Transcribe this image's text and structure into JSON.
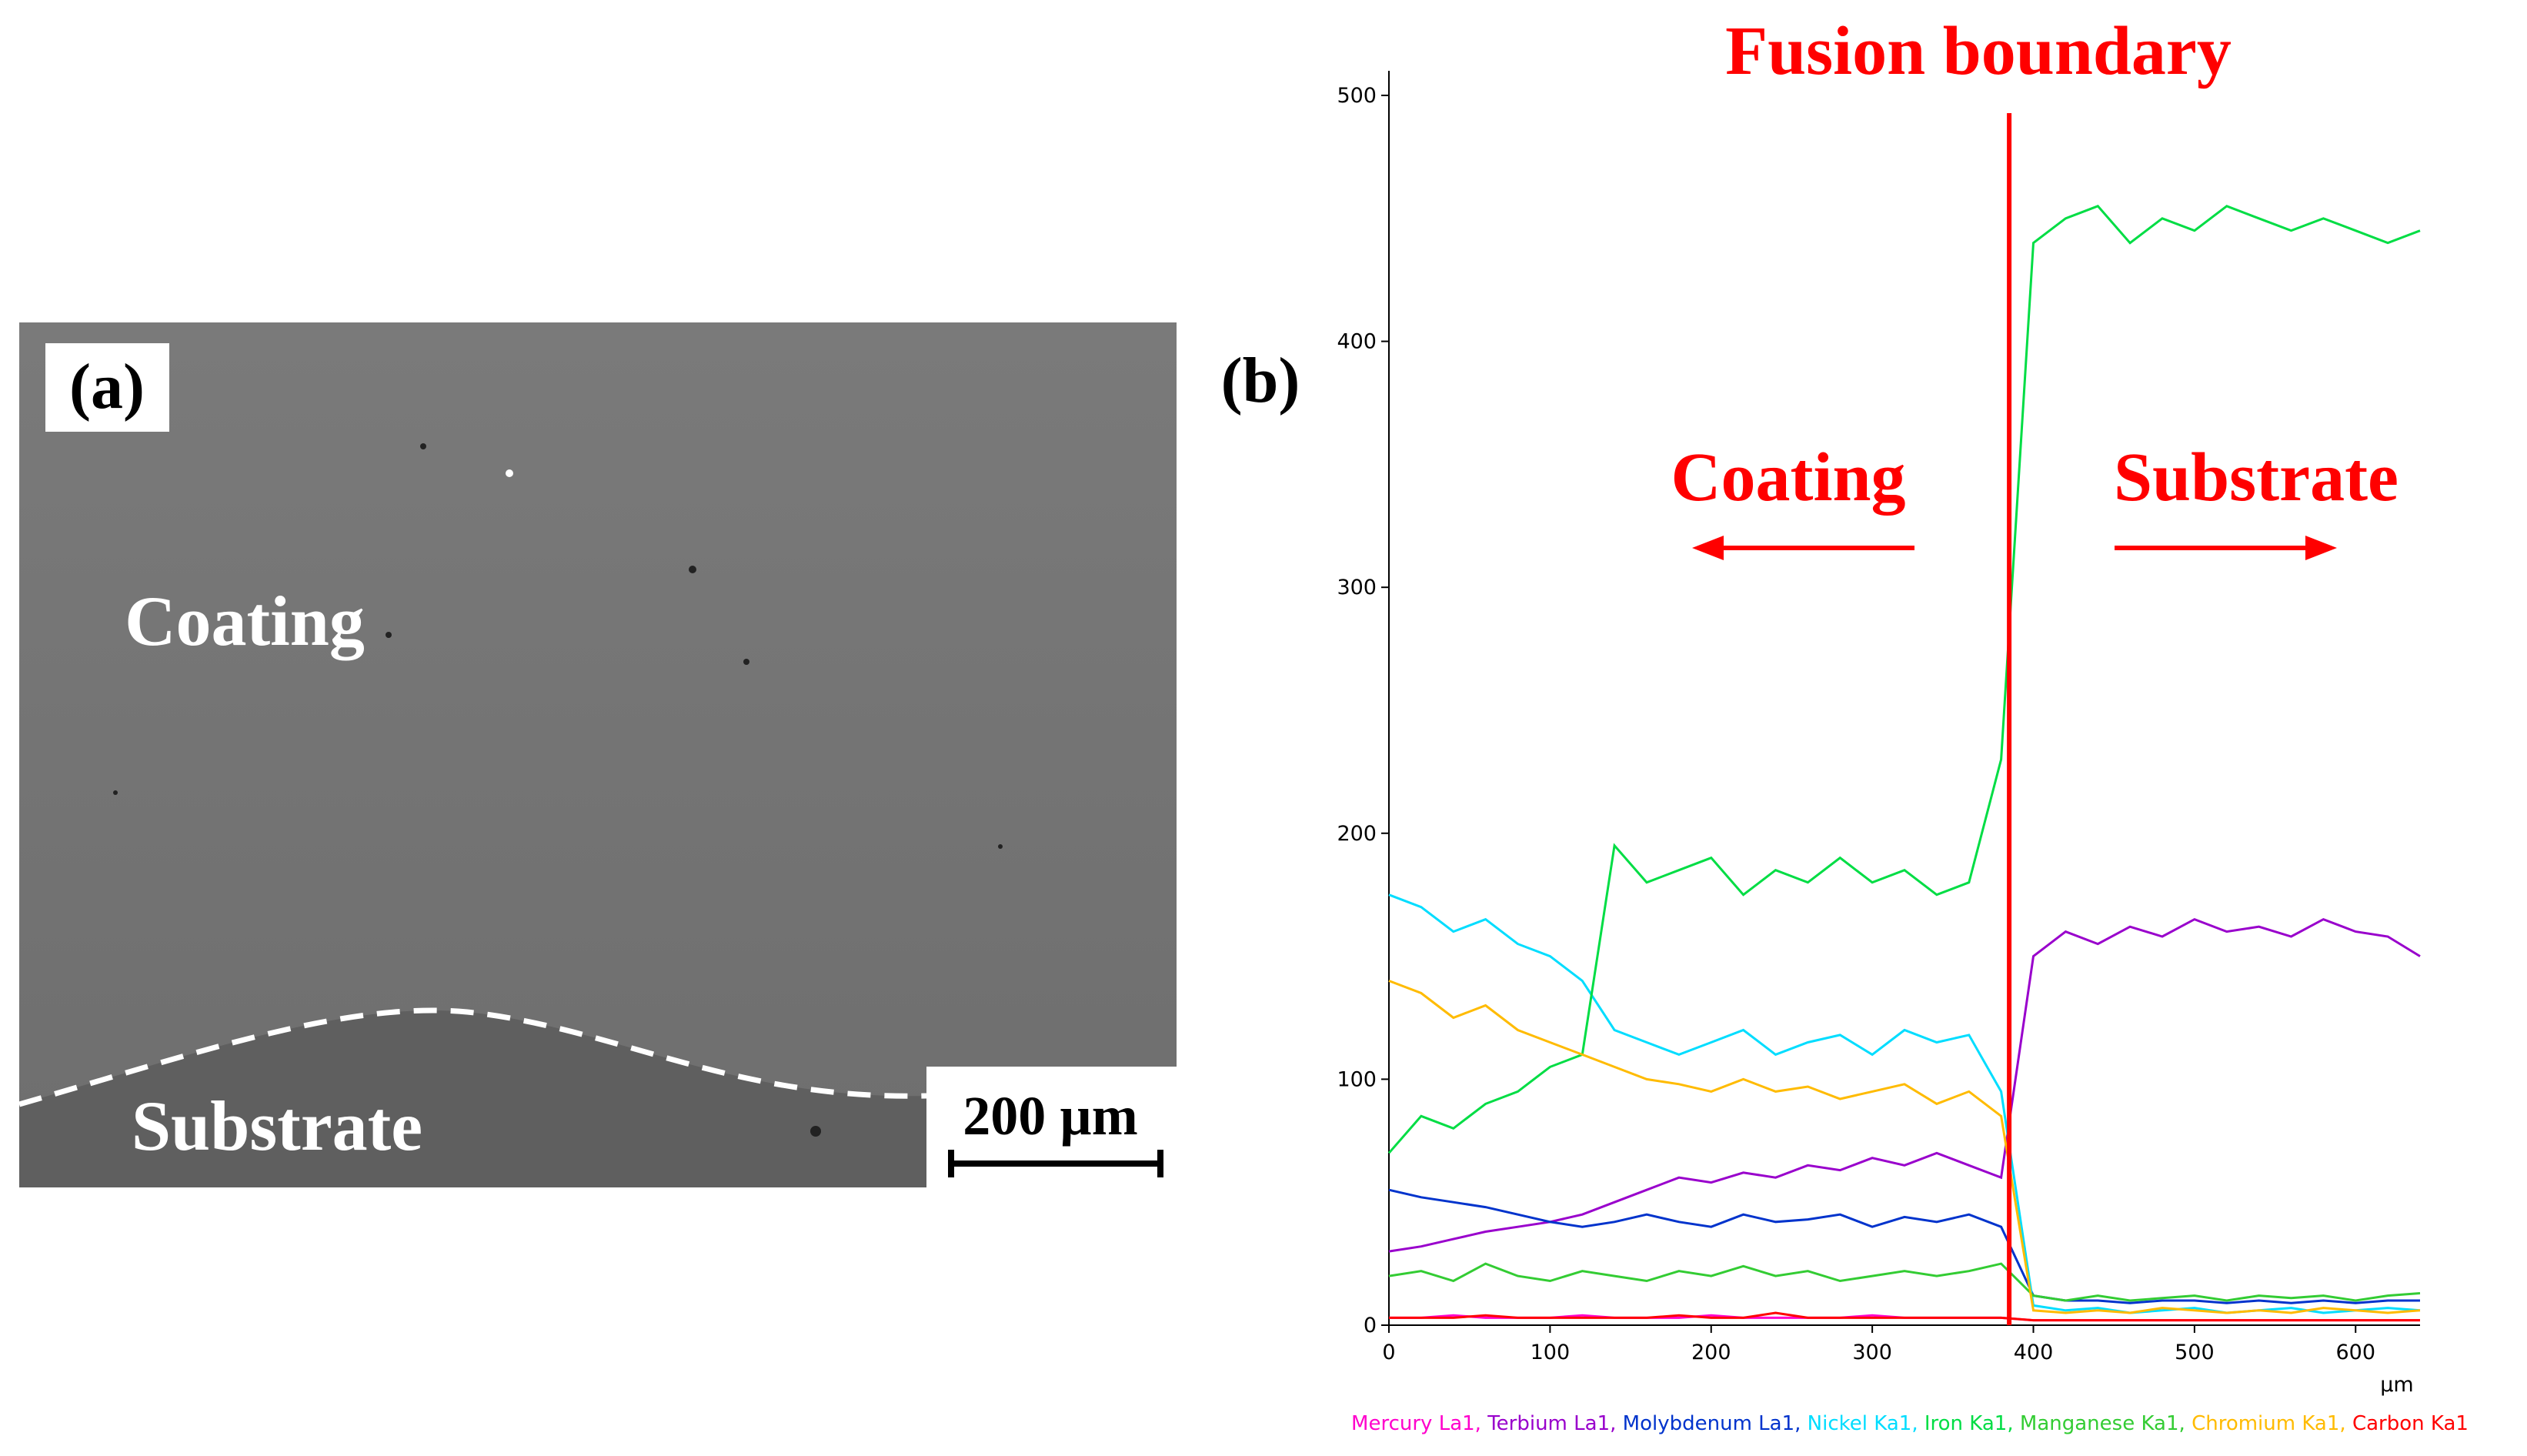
{
  "panel_a": {
    "label": "(a)",
    "coating": "Coating",
    "substrate": "Substrate",
    "scale_bar": "200 µm"
  },
  "chart_data": {
    "type": "line",
    "panel_label": "(b)",
    "annotation": "Fusion boundary",
    "boundary_x": 385,
    "left_label": "Coating",
    "right_label": "Substrate",
    "xlabel": "µm",
    "xlim": [
      0,
      640
    ],
    "xticks": [
      0,
      100,
      200,
      300,
      400,
      500,
      600
    ],
    "ylim": [
      0,
      510
    ],
    "yticks": [
      0,
      100,
      200,
      300,
      400,
      500
    ],
    "legend_separator": ",",
    "x": [
      0,
      20,
      40,
      60,
      80,
      100,
      120,
      140,
      160,
      180,
      200,
      220,
      240,
      260,
      280,
      300,
      320,
      340,
      360,
      380,
      400,
      420,
      440,
      460,
      480,
      500,
      520,
      540,
      560,
      580,
      600,
      620,
      640
    ],
    "series": [
      {
        "name": "Mercury La1",
        "color": "#ff00cc",
        "values": [
          3,
          3,
          4,
          3,
          3,
          3,
          4,
          3,
          3,
          3,
          4,
          3,
          3,
          3,
          3,
          4,
          3,
          3,
          3,
          3,
          2,
          2,
          2,
          2,
          2,
          2,
          2,
          2,
          2,
          2,
          2,
          2,
          2
        ]
      },
      {
        "name": "Terbium La1",
        "color": "#9900cc",
        "values": [
          30,
          32,
          35,
          38,
          40,
          42,
          45,
          50,
          55,
          60,
          58,
          62,
          60,
          65,
          63,
          68,
          65,
          70,
          65,
          60,
          150,
          160,
          155,
          162,
          158,
          165,
          160,
          162,
          158,
          165,
          160,
          158,
          150
        ]
      },
      {
        "name": "Molybdenum La1",
        "color": "#0033cc",
        "values": [
          55,
          52,
          50,
          48,
          45,
          42,
          40,
          42,
          45,
          42,
          40,
          45,
          42,
          43,
          45,
          40,
          44,
          42,
          45,
          40,
          12,
          10,
          10,
          9,
          10,
          10,
          9,
          10,
          9,
          10,
          9,
          10,
          10
        ]
      },
      {
        "name": "Nickel Ka1",
        "color": "#00ddff",
        "values": [
          175,
          170,
          160,
          165,
          155,
          150,
          140,
          120,
          115,
          110,
          115,
          120,
          110,
          115,
          118,
          110,
          120,
          115,
          118,
          95,
          8,
          6,
          7,
          5,
          6,
          7,
          5,
          6,
          7,
          5,
          6,
          7,
          6
        ]
      },
      {
        "name": "Iron Ka1",
        "color": "#00dd44",
        "values": [
          70,
          85,
          80,
          90,
          95,
          105,
          110,
          195,
          180,
          185,
          190,
          175,
          185,
          180,
          190,
          180,
          185,
          175,
          180,
          230,
          440,
          450,
          455,
          440,
          450,
          445,
          455,
          450,
          445,
          450,
          445,
          440,
          445
        ]
      },
      {
        "name": "Manganese Ka1",
        "color": "#33cc33",
        "values": [
          20,
          22,
          18,
          25,
          20,
          18,
          22,
          20,
          18,
          22,
          20,
          24,
          20,
          22,
          18,
          20,
          22,
          20,
          22,
          25,
          12,
          10,
          12,
          10,
          11,
          12,
          10,
          12,
          11,
          12,
          10,
          12,
          13
        ]
      },
      {
        "name": "Chromium Ka1",
        "color": "#ffbb00",
        "values": [
          140,
          135,
          125,
          130,
          120,
          115,
          110,
          105,
          100,
          98,
          95,
          100,
          95,
          97,
          92,
          95,
          98,
          90,
          95,
          85,
          6,
          5,
          6,
          5,
          7,
          6,
          5,
          6,
          5,
          7,
          6,
          5,
          6
        ]
      },
      {
        "name": "Carbon Ka1",
        "color": "#ff0000",
        "values": [
          3,
          3,
          3,
          4,
          3,
          3,
          3,
          3,
          3,
          4,
          3,
          3,
          5,
          3,
          3,
          3,
          3,
          3,
          3,
          3,
          2,
          2,
          2,
          2,
          2,
          2,
          2,
          2,
          2,
          2,
          2,
          2,
          2
        ]
      }
    ]
  }
}
